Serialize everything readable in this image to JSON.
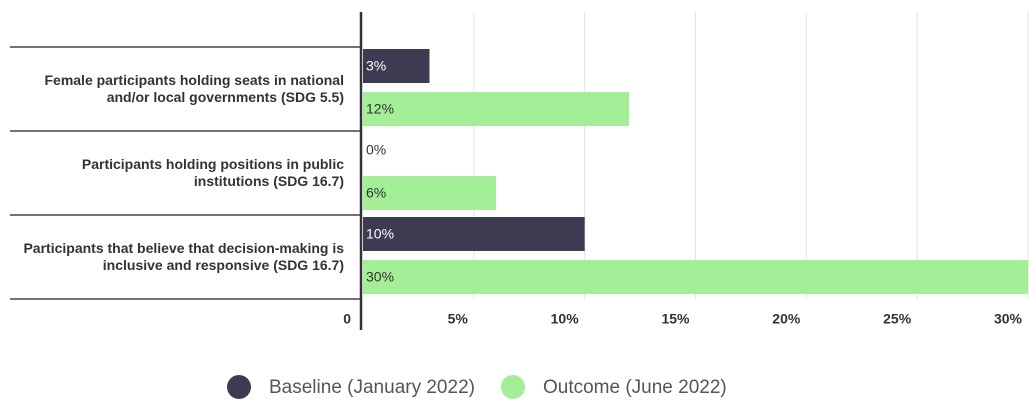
{
  "chart_data": {
    "type": "hbar",
    "categories": [
      "Female participants holding seats in national and/or local governments (SDG 5.5)",
      "Participants holding positions in public institutions (SDG 16.7)",
      "Participants that believe that decision-making is inclusive and responsive (SDG 16.7)"
    ],
    "series": [
      {
        "name": "Baseline (January 2022)",
        "color": "#3d3a52",
        "values": [
          3,
          0,
          10
        ],
        "value_labels": [
          "3%",
          "0%",
          "10%"
        ]
      },
      {
        "name": "Outcome (June 2022)",
        "color": "#a3ee97",
        "values": [
          12,
          6,
          30
        ],
        "value_labels": [
          "12%",
          "6%",
          "30%"
        ]
      }
    ],
    "xlim": [
      0,
      30
    ],
    "xticks": [
      0,
      {
        "value": 5,
        "label": "5%"
      },
      {
        "value": 10,
        "label": "10%"
      },
      {
        "value": 15,
        "label": "15%"
      },
      {
        "value": 20,
        "label": "20%"
      },
      {
        "value": 25,
        "label": "25%"
      },
      {
        "value": 30,
        "label": "30%"
      }
    ],
    "grid": true,
    "legend": "bottom"
  }
}
